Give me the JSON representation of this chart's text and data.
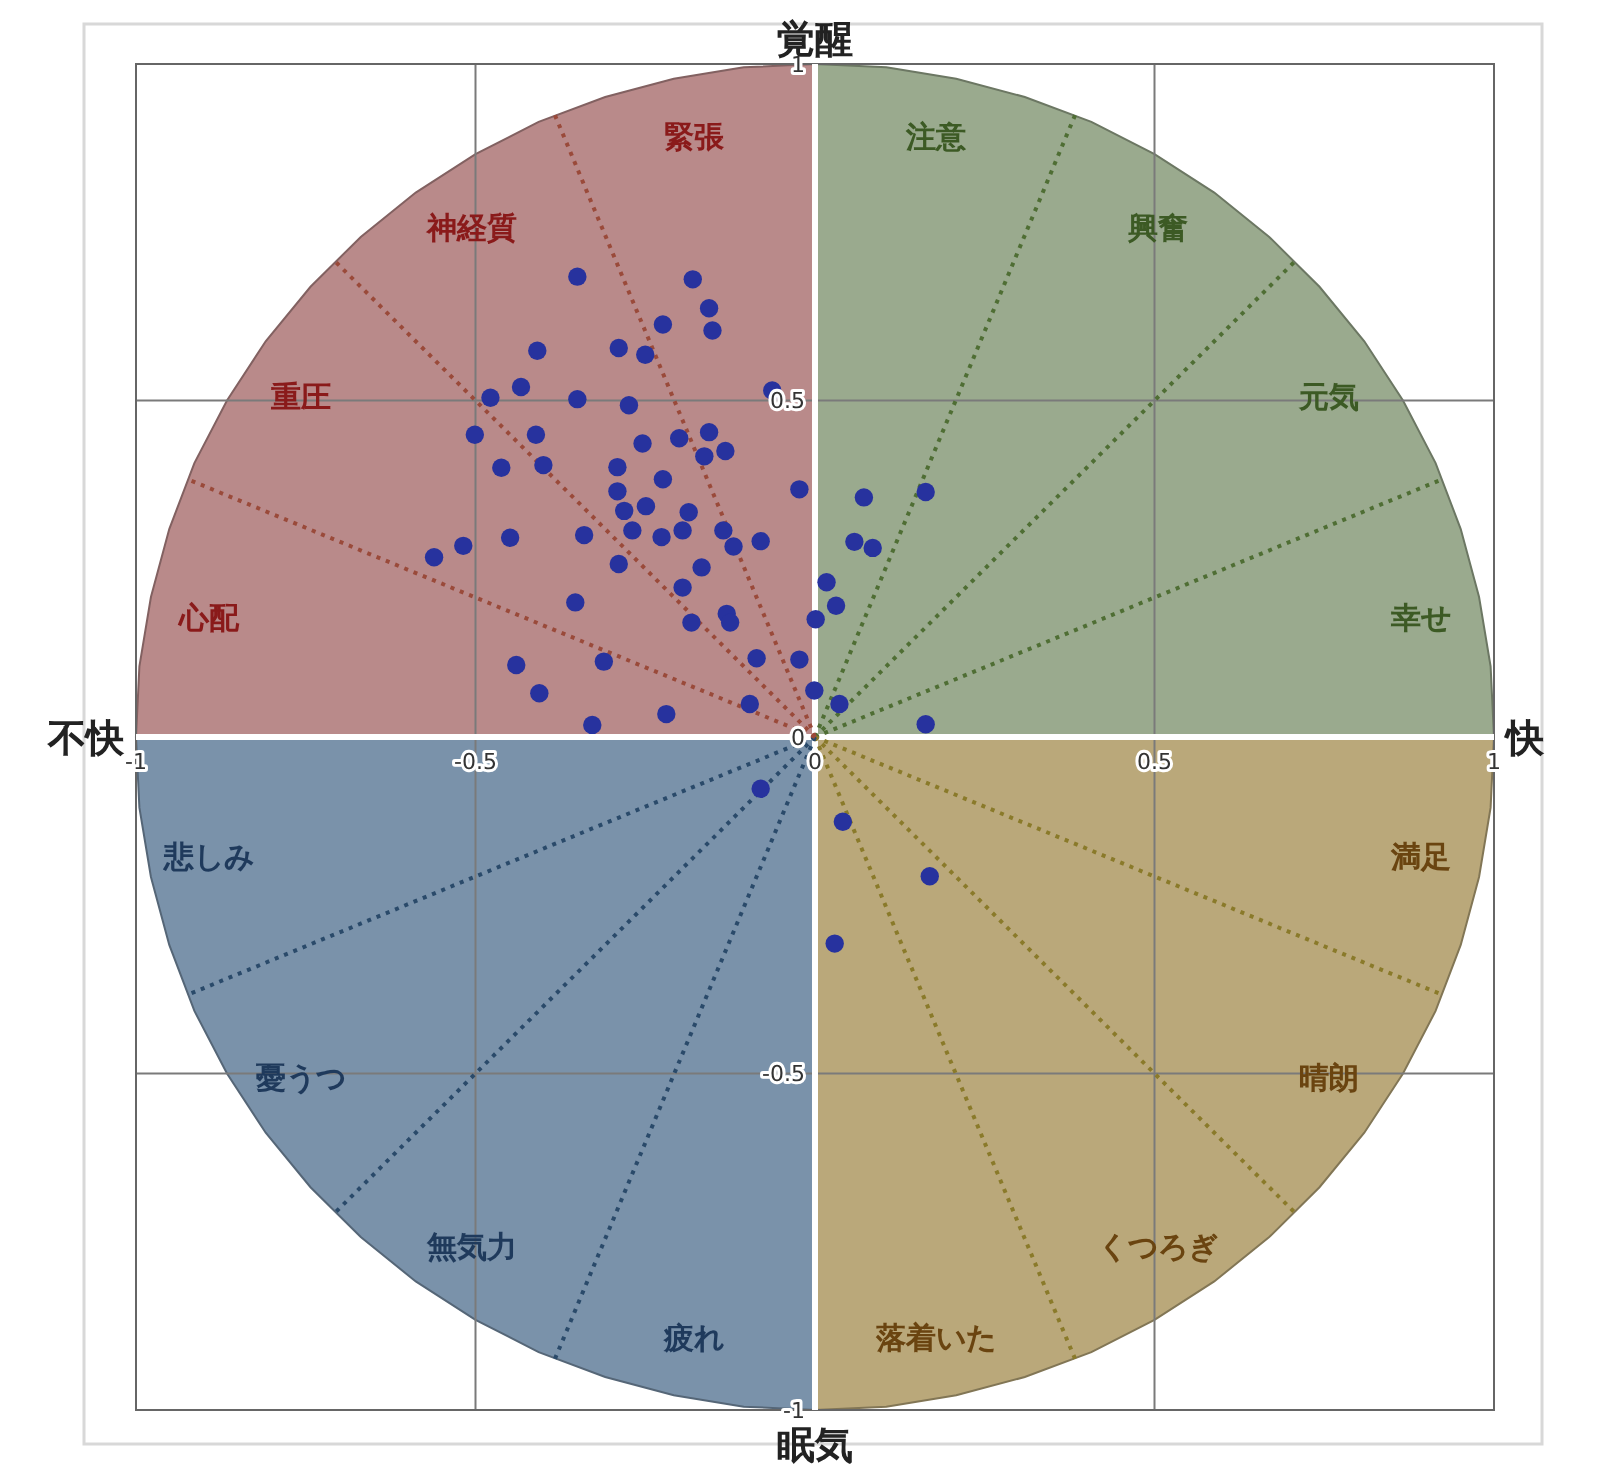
{
  "chart_data": {
    "type": "scatter",
    "annotations": [
      "覚醒",
      "快",
      "眠気",
      "不快",
      "注意",
      "興奮",
      "元気",
      "幸せ",
      "満足",
      "晴朗",
      "くつろぎ",
      "落着いた",
      "疲れ",
      "無気力",
      "憂うつ",
      "悲しみ",
      "心配",
      "重圧",
      "神経質",
      "緊張"
    ],
    "series": [
      {
        "type": "area",
        "color": "#9aaa8e",
        "x": [
          0,
          0.105,
          0.208,
          0.309,
          0.407,
          0.5,
          0.588,
          0.669,
          0.743,
          0.809,
          0.866,
          0.914,
          0.951,
          0.978,
          0.995,
          1
        ],
        "values": [
          1,
          0.995,
          0.978,
          0.951,
          0.914,
          0.866,
          0.809,
          0.743,
          0.669,
          0.588,
          0.5,
          0.407,
          0.309,
          0.208,
          0.105,
          0
        ]
      },
      {
        "type": "area",
        "color": "#baa87a",
        "x": [
          0,
          0.105,
          0.208,
          0.309,
          0.407,
          0.5,
          0.588,
          0.669,
          0.743,
          0.809,
          0.866,
          0.914,
          0.951,
          0.978,
          0.995,
          1
        ],
        "values": [
          -1,
          -0.995,
          -0.978,
          -0.951,
          -0.914,
          -0.866,
          -0.809,
          -0.743,
          -0.669,
          -0.588,
          -0.5,
          -0.407,
          -0.309,
          -0.208,
          -0.105,
          0
        ]
      },
      {
        "type": "area",
        "color": "#7a92aa",
        "x": [
          -1,
          -0.995,
          -0.978,
          -0.951,
          -0.914,
          -0.866,
          -0.809,
          -0.743,
          -0.669,
          -0.588,
          -0.5,
          -0.407,
          -0.309,
          -0.208,
          -0.105,
          0
        ],
        "values": [
          0,
          -0.105,
          -0.208,
          -0.309,
          -0.407,
          -0.5,
          -0.588,
          -0.669,
          -0.743,
          -0.809,
          -0.866,
          -0.914,
          -0.951,
          -0.978,
          -0.995,
          -1
        ]
      },
      {
        "type": "area",
        "color": "#b98a8a",
        "x": [
          -1,
          -0.995,
          -0.978,
          -0.951,
          -0.914,
          -0.866,
          -0.809,
          -0.743,
          -0.669,
          -0.588,
          -0.5,
          -0.407,
          -0.309,
          -0.208,
          -0.105,
          0
        ],
        "values": [
          0,
          0.105,
          0.208,
          0.309,
          0.407,
          0.5,
          0.588,
          0.669,
          0.743,
          0.809,
          0.866,
          0.914,
          0.951,
          0.978,
          0.995,
          1
        ]
      },
      {
        "type": "line",
        "color": "#4f6e34",
        "line_style": "dotted",
        "marker": "none",
        "x": [
          0,
          0.383
        ],
        "values": [
          0,
          0.924
        ]
      },
      {
        "type": "line",
        "color": "#4f6e34",
        "line_style": "dotted",
        "marker": "none",
        "x": [
          0,
          0.707
        ],
        "values": [
          0,
          0.707
        ]
      },
      {
        "type": "line",
        "color": "#4f6e34",
        "line_style": "dotted",
        "marker": "none",
        "x": [
          0,
          0.924
        ],
        "values": [
          0,
          0.383
        ]
      },
      {
        "type": "line",
        "color": "#8a7a2a",
        "line_style": "dotted",
        "marker": "none",
        "x": [
          0,
          0.924
        ],
        "values": [
          0,
          -0.383
        ]
      },
      {
        "type": "line",
        "color": "#8a7a2a",
        "line_style": "dotted",
        "marker": "none",
        "x": [
          0,
          0.707
        ],
        "values": [
          0,
          -0.707
        ]
      },
      {
        "type": "line",
        "color": "#8a7a2a",
        "line_style": "dotted",
        "marker": "none",
        "x": [
          0,
          0.383
        ],
        "values": [
          0,
          -0.924
        ]
      },
      {
        "type": "line",
        "color": "#2a4a6a",
        "line_style": "dotted",
        "marker": "none",
        "x": [
          0,
          -0.383
        ],
        "values": [
          0,
          -0.924
        ]
      },
      {
        "type": "line",
        "color": "#2a4a6a",
        "line_style": "dotted",
        "marker": "none",
        "x": [
          0,
          -0.707
        ],
        "values": [
          0,
          -0.707
        ]
      },
      {
        "type": "line",
        "color": "#2a4a6a",
        "line_style": "dotted",
        "marker": "none",
        "x": [
          0,
          -0.924
        ],
        "values": [
          0,
          -0.383
        ]
      },
      {
        "type": "line",
        "color": "#9a4a3a",
        "line_style": "dotted",
        "marker": "none",
        "x": [
          0,
          -0.924
        ],
        "values": [
          0,
          0.383
        ]
      },
      {
        "type": "line",
        "color": "#9a4a3a",
        "line_style": "dotted",
        "marker": "none",
        "x": [
          0,
          -0.707
        ],
        "values": [
          0,
          0.707
        ]
      },
      {
        "type": "line",
        "color": "#9a4a3a",
        "line_style": "dotted",
        "marker": "none",
        "x": [
          0,
          -0.383
        ],
        "values": [
          0,
          0.924
        ]
      },
      {
        "color": "#27329e",
        "marker": "circle",
        "x": [
          -0.35,
          -0.18,
          -0.156,
          -0.151,
          -0.224,
          -0.409,
          -0.289,
          -0.25,
          -0.063,
          -0.433,
          -0.478,
          -0.35,
          -0.274,
          -0.501,
          -0.411,
          -0.254,
          -0.2,
          -0.156,
          -0.163,
          -0.132,
          -0.462,
          -0.4,
          -0.291,
          -0.224,
          -0.023,
          -0.291,
          -0.249,
          -0.281,
          -0.186,
          -0.269,
          -0.226,
          -0.195,
          -0.135,
          -0.12,
          -0.08,
          -0.518,
          -0.561,
          -0.449,
          -0.34,
          -0.289,
          -0.167,
          -0.195,
          -0.353,
          -0.182,
          -0.13,
          -0.125,
          -0.086,
          -0.023,
          -0.44,
          -0.311,
          -0.406,
          -0.096,
          -0.219,
          -0.328,
          0.072,
          0.163,
          0.058,
          0.085,
          0.017,
          0.031,
          0.001,
          -0.001,
          0.036,
          0.163,
          -0.08,
          0.041,
          0.169,
          0.029
        ],
        "values": [
          0.684,
          0.68,
          0.637,
          0.604,
          0.613,
          0.574,
          0.578,
          0.568,
          0.515,
          0.52,
          0.504,
          0.502,
          0.493,
          0.449,
          0.449,
          0.436,
          0.444,
          0.453,
          0.417,
          0.425,
          0.4,
          0.404,
          0.401,
          0.383,
          0.368,
          0.365,
          0.343,
          0.336,
          0.334,
          0.307,
          0.297,
          0.307,
          0.307,
          0.283,
          0.291,
          0.284,
          0.267,
          0.296,
          0.3,
          0.257,
          0.252,
          0.222,
          0.2,
          0.17,
          0.183,
          0.17,
          0.117,
          0.115,
          0.107,
          0.112,
          0.065,
          0.049,
          0.034,
          0.018,
          0.356,
          0.364,
          0.29,
          0.281,
          0.23,
          0.195,
          0.175,
          0.069,
          0.049,
          0.019,
          -0.077,
          -0.126,
          -0.207,
          -0.307
        ]
      }
    ],
    "xlim": [
      -1,
      1
    ],
    "ylim": [
      -1,
      1
    ],
    "xticks": [
      -1,
      -0.5,
      0,
      0.5,
      1
    ],
    "yticks": [
      -1,
      -0.5,
      0,
      0.5,
      1
    ],
    "grid": true
  }
}
